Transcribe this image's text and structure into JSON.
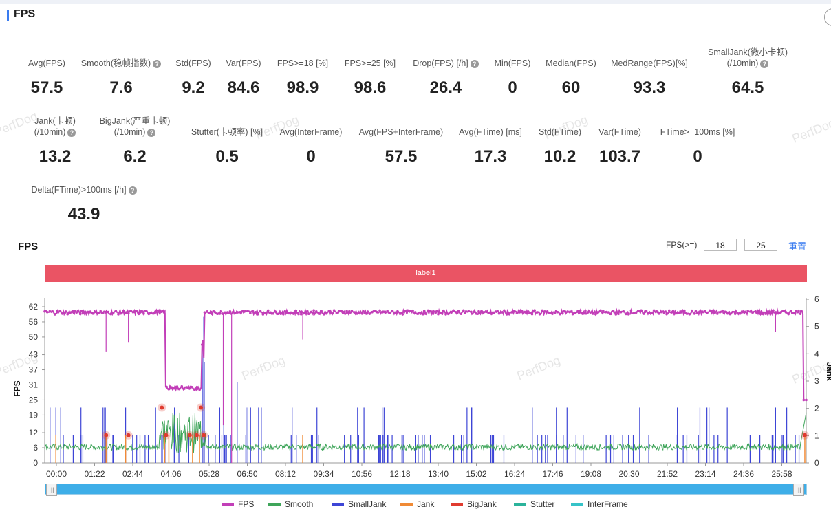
{
  "header": {
    "title": "FPS"
  },
  "watermark_text": "PerfDog",
  "metrics": [
    {
      "label": "Avg(FPS)",
      "value": "57.5",
      "help": false
    },
    {
      "label": "Smooth(稳帧指数)",
      "value": "7.6",
      "help": true
    },
    {
      "label": "Std(FPS)",
      "value": "9.2",
      "help": false
    },
    {
      "label": "Var(FPS)",
      "value": "84.6",
      "help": false
    },
    {
      "label": "FPS>=18 [%]",
      "value": "98.9",
      "help": false
    },
    {
      "label": "FPS>=25 [%]",
      "value": "98.6",
      "help": false
    },
    {
      "label": "Drop(FPS) [/h]",
      "value": "26.4",
      "help": true
    },
    {
      "label": "Min(FPS)",
      "value": "0",
      "help": false
    },
    {
      "label": "Median(FPS)",
      "value": "60",
      "help": false
    },
    {
      "label": "MedRange(FPS)[%]",
      "value": "93.3",
      "help": false
    },
    {
      "label": "SmallJank(微小卡顿)",
      "label2": "(/10min)",
      "value": "64.5",
      "help": true
    },
    {
      "label": "Jank(卡顿)",
      "label2": "(/10min)",
      "value": "13.2",
      "help": true
    },
    {
      "label": "BigJank(严重卡顿)",
      "label2": "(/10min)",
      "value": "6.2",
      "help": true
    },
    {
      "label": "Stutter(卡顿率) [%]",
      "value": "0.5",
      "help": false
    },
    {
      "label": "Avg(InterFrame)",
      "value": "0",
      "help": false
    },
    {
      "label": "Avg(FPS+InterFrame)",
      "value": "57.5",
      "help": false
    },
    {
      "label": "Avg(FTime) [ms]",
      "value": "17.3",
      "help": false
    },
    {
      "label": "Std(FTime)",
      "value": "10.2",
      "help": false
    },
    {
      "label": "Var(FTime)",
      "value": "103.7",
      "help": false
    },
    {
      "label": "FTime>=100ms [%]",
      "value": "0",
      "help": false
    },
    {
      "label": "Delta(FTime)>100ms [/h]",
      "value": "43.9",
      "help": true
    }
  ],
  "chart_section": {
    "title": "FPS",
    "threshold_label": "FPS(>=)",
    "threshold_1": "18",
    "threshold_2": "25",
    "reset_label": "重置",
    "label_bar": "label1"
  },
  "chart_data": {
    "type": "line",
    "ylabel": "FPS",
    "y2label": "Jank",
    "y_ticks": [
      "0",
      "6",
      "12",
      "19",
      "25",
      "31",
      "37",
      "43",
      "50",
      "56",
      "62"
    ],
    "y2_ticks": [
      "0",
      "1",
      "2",
      "3",
      "4",
      "5",
      "6"
    ],
    "x_ticks": [
      "00:00",
      "01:22",
      "02:44",
      "04:06",
      "05:28",
      "06:50",
      "08:12",
      "09:34",
      "10:56",
      "12:18",
      "13:40",
      "15:02",
      "16:24",
      "17:46",
      "19:08",
      "20:30",
      "21:52",
      "23:14",
      "24:36",
      "25:58"
    ],
    "colors": {
      "FPS": "#c23fb8",
      "Smooth": "#3fa55a",
      "SmallJank": "#3d45d6",
      "Jank": "#f08a35",
      "BigJank": "#e03b2f",
      "Stutter": "#2bb39b",
      "InterFrame": "#36c3c8"
    },
    "series": [
      {
        "name": "FPS",
        "points": [
          [
            0,
            59.5
          ],
          [
            4.3,
            59.5
          ],
          [
            4.36,
            30
          ],
          [
            5.6,
            30
          ],
          [
            5.75,
            59.5
          ],
          [
            27.2,
            59.5
          ],
          [
            27.3,
            25
          ]
        ]
      },
      {
        "name": "Smooth",
        "points": [
          [
            0,
            6.5
          ],
          [
            4.0,
            6.5
          ],
          [
            4.2,
            12
          ],
          [
            5.8,
            10
          ],
          [
            6.0,
            6.5
          ],
          [
            27.0,
            6.5
          ],
          [
            27.3,
            20
          ]
        ]
      }
    ],
    "legend": [
      "FPS",
      "Smooth",
      "SmallJank",
      "Jank",
      "BigJank",
      "Stutter",
      "InterFrame"
    ]
  }
}
